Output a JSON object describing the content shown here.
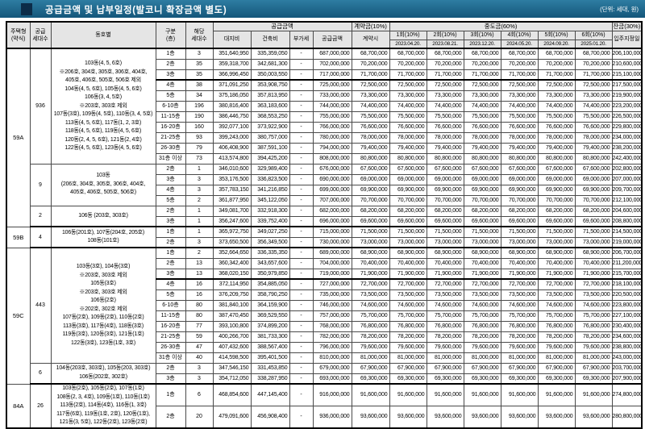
{
  "title": "공급금액 및 납부일정(발코니 확장금액 별도)",
  "unit_note": "(단위: 세대, 원)",
  "colors": {
    "band_teal": "#1e6b8e",
    "accent_navy": "#0c2c48",
    "header_gray": "#e5e5e5"
  },
  "header": {
    "col_type": "주택형\n(약식)",
    "col_units": "공급\n세대수",
    "col_dongho": "동호별",
    "col_floor": "구분\n(층)",
    "col_count": "해당\n세대수",
    "group_supply": "공급금액",
    "col_land": "대지비",
    "col_bldg": "건축비",
    "col_vat": "부가세",
    "col_total": "공급금액",
    "group_contract": "계약금(10%)",
    "col_contract_time": "계약시",
    "group_interim": "중도금(60%)",
    "installments": [
      {
        "label": "1회(10%)",
        "date": "2023.04.20."
      },
      {
        "label": "2회(10%)",
        "date": "2023.08.21."
      },
      {
        "label": "3회(10%)",
        "date": "2023.12.20."
      },
      {
        "label": "4회(10%)",
        "date": "2024.05.20."
      },
      {
        "label": "5회(10%)",
        "date": "2024.09.20."
      },
      {
        "label": "6회(10%)",
        "date": "2025.01.20."
      }
    ],
    "group_balance": "잔금(30%)",
    "col_movein": "입주지정일"
  },
  "groups": [
    {
      "type": "59A",
      "subs": [
        {
          "units": "936",
          "dongho": "103동(4, 5, 6호)\n※206호, 304호, 305호, 306호, 404호,\n405호, 406호, 505호, 506호 제외\n104동(4, 5, 6호), 105동(4, 5, 6호)\n106동(3, 4, 5호)\n※203호, 303호 제외\n107동(3호), 109동(4, 5호), 110동(3, 4, 5호)\n113동(4, 5, 6호), 117동(1, 2, 3호)\n118동(4, 5, 6호), 119동(4, 5, 6호)\n120동(2, 4, 5, 6호), 121동(2, 4호)\n122동(4, 5, 6호), 123동(4, 5, 6호)",
          "rows": [
            {
              "f": "1층",
              "c": "3",
              "land": "351,640,950",
              "bldg": "335,359,050",
              "vat": "-",
              "total": "687,000,000",
              "inst": "68,700,000",
              "bal": "206,100,000"
            },
            {
              "f": "2층",
              "c": "35",
              "land": "359,318,700",
              "bldg": "342,681,300",
              "vat": "-",
              "total": "702,000,000",
              "inst": "70,200,000",
              "bal": "210,600,000"
            },
            {
              "f": "3층",
              "c": "35",
              "land": "366,996,450",
              "bldg": "350,003,550",
              "vat": "-",
              "total": "717,000,000",
              "inst": "71,700,000",
              "bal": "215,100,000",
              "thick": true
            },
            {
              "f": "4층",
              "c": "38",
              "land": "371,091,250",
              "bldg": "353,908,750",
              "vat": "-",
              "total": "725,000,000",
              "inst": "72,500,000",
              "bal": "217,500,000"
            },
            {
              "f": "5층",
              "c": "34",
              "land": "375,186,050",
              "bldg": "357,813,950",
              "vat": "-",
              "total": "733,000,000",
              "inst": "73,300,000",
              "bal": "219,900,000"
            },
            {
              "f": "6-10층",
              "c": "196",
              "land": "380,816,400",
              "bldg": "363,183,600",
              "vat": "-",
              "total": "744,000,000",
              "inst": "74,400,000",
              "bal": "223,200,000"
            },
            {
              "f": "11-15층",
              "c": "190",
              "land": "386,446,750",
              "bldg": "368,553,250",
              "vat": "-",
              "total": "755,000,000",
              "inst": "75,500,000",
              "bal": "226,500,000"
            },
            {
              "f": "16-20층",
              "c": "160",
              "land": "392,077,100",
              "bldg": "373,922,900",
              "vat": "-",
              "total": "766,000,000",
              "inst": "76,600,000",
              "bal": "229,800,000"
            },
            {
              "f": "21-25층",
              "c": "93",
              "land": "399,243,000",
              "bldg": "380,757,000",
              "vat": "-",
              "total": "780,000,000",
              "inst": "78,000,000",
              "bal": "234,000,000"
            },
            {
              "f": "26-30층",
              "c": "79",
              "land": "406,408,900",
              "bldg": "387,591,100",
              "vat": "-",
              "total": "794,000,000",
              "inst": "79,400,000",
              "bal": "238,200,000"
            },
            {
              "f": "31층 이상",
              "c": "73",
              "land": "413,574,800",
              "bldg": "394,425,200",
              "vat": "-",
              "total": "808,000,000",
              "inst": "80,800,000",
              "bal": "242,400,000"
            }
          ]
        },
        {
          "units": "9",
          "dongho": "103동\n(206호, 304호, 305호, 306호, 404호,\n405호, 406호, 505호, 506호)",
          "rows": [
            {
              "f": "2층",
              "c": "1",
              "land": "346,010,600",
              "bldg": "329,989,400",
              "vat": "-",
              "total": "676,000,000",
              "inst": "67,600,000",
              "bal": "202,800,000"
            },
            {
              "f": "3층",
              "c": "3",
              "land": "353,176,500",
              "bldg": "336,823,500",
              "vat": "-",
              "total": "690,000,000",
              "inst": "69,000,000",
              "bal": "207,000,000"
            },
            {
              "f": "4층",
              "c": "3",
              "land": "357,783,150",
              "bldg": "341,216,850",
              "vat": "-",
              "total": "699,000,000",
              "inst": "69,900,000",
              "bal": "209,700,000"
            },
            {
              "f": "5층",
              "c": "2",
              "land": "361,877,950",
              "bldg": "345,122,050",
              "vat": "-",
              "total": "707,000,000",
              "inst": "70,700,000",
              "bal": "212,100,000"
            }
          ]
        },
        {
          "units": "2",
          "dongho": "106동 (203호, 303호)",
          "rows": [
            {
              "f": "2층",
              "c": "1",
              "land": "349,081,700",
              "bldg": "332,918,300",
              "vat": "-",
              "total": "682,000,000",
              "inst": "68,200,000",
              "bal": "204,600,000"
            },
            {
              "f": "3층",
              "c": "1",
              "land": "356,247,600",
              "bldg": "339,752,400",
              "vat": "-",
              "total": "696,000,000",
              "inst": "69,600,000",
              "bal": "208,800,000"
            }
          ]
        }
      ]
    },
    {
      "type": "59B",
      "subs": [
        {
          "units": "4",
          "dongho": "106동(201호), 107동(204호, 205호)\n108동(101호)",
          "rows": [
            {
              "f": "1층",
              "c": "1",
              "land": "365,972,750",
              "bldg": "349,027,250",
              "vat": "-",
              "total": "715,000,000",
              "inst": "71,500,000",
              "bal": "214,500,000"
            },
            {
              "f": "2층",
              "c": "3",
              "land": "373,650,500",
              "bldg": "356,349,500",
              "vat": "-",
              "total": "730,000,000",
              "inst": "73,000,000",
              "bal": "219,000,000"
            }
          ]
        }
      ]
    },
    {
      "type": "59C",
      "subs": [
        {
          "units": "443",
          "dongho": "103동(3호), 104동(3호)\n※203호, 303호 제외\n105동(3호)\n※203호, 303호 제외\n106동(2호)\n※202호, 302호 제외\n107동(2호), 109동(2호), 110동(2호)\n113동(3호), 117동(4호), 118동(3호)\n119동(3호), 120동(3호), 121동(1호)\n122동(3호), 123동(1호, 3호)",
          "rows": [
            {
              "f": "1층",
              "c": "2",
              "land": "352,664,650",
              "bldg": "336,335,350",
              "vat": "-",
              "total": "689,000,000",
              "inst": "68,900,000",
              "bal": "206,700,000"
            },
            {
              "f": "2층",
              "c": "13",
              "land": "360,342,400",
              "bldg": "343,657,600",
              "vat": "-",
              "total": "704,000,000",
              "inst": "70,400,000",
              "bal": "211,200,000"
            },
            {
              "f": "3층",
              "c": "13",
              "land": "368,020,150",
              "bldg": "350,979,850",
              "vat": "-",
              "total": "719,000,000",
              "inst": "71,900,000",
              "bal": "215,700,000",
              "thick": true
            },
            {
              "f": "4층",
              "c": "16",
              "land": "372,114,950",
              "bldg": "354,885,050",
              "vat": "-",
              "total": "727,000,000",
              "inst": "72,700,000",
              "bal": "218,100,000"
            },
            {
              "f": "5층",
              "c": "16",
              "land": "376,209,750",
              "bldg": "358,790,250",
              "vat": "-",
              "total": "735,000,000",
              "inst": "73,500,000",
              "bal": "220,500,000"
            },
            {
              "f": "6-10층",
              "c": "80",
              "land": "381,840,100",
              "bldg": "364,159,900",
              "vat": "-",
              "total": "746,000,000",
              "inst": "74,600,000",
              "bal": "223,800,000"
            },
            {
              "f": "11-15층",
              "c": "80",
              "land": "387,470,450",
              "bldg": "369,529,550",
              "vat": "-",
              "total": "757,000,000",
              "inst": "75,700,000",
              "bal": "227,100,000"
            },
            {
              "f": "16-20층",
              "c": "77",
              "land": "393,100,800",
              "bldg": "374,899,200",
              "vat": "-",
              "total": "768,000,000",
              "inst": "76,800,000",
              "bal": "230,400,000"
            },
            {
              "f": "21-25층",
              "c": "59",
              "land": "400,266,700",
              "bldg": "381,733,300",
              "vat": "-",
              "total": "782,000,000",
              "inst": "78,200,000",
              "bal": "234,600,000"
            },
            {
              "f": "26-30층",
              "c": "47",
              "land": "407,432,600",
              "bldg": "388,567,400",
              "vat": "-",
              "total": "796,000,000",
              "inst": "79,600,000",
              "bal": "238,800,000"
            },
            {
              "f": "31층 이상",
              "c": "40",
              "land": "414,598,500",
              "bldg": "395,401,500",
              "vat": "-",
              "total": "810,000,000",
              "inst": "81,000,000",
              "bal": "243,000,000"
            }
          ]
        },
        {
          "units": "6",
          "dongho": "104동(203호, 303호), 105동(203, 303호)\n106동(202호, 302호)",
          "rows": [
            {
              "f": "2층",
              "c": "3",
              "land": "347,546,150",
              "bldg": "331,453,850",
              "vat": "-",
              "total": "679,000,000",
              "inst": "67,900,000",
              "bal": "203,700,000"
            },
            {
              "f": "3층",
              "c": "3",
              "land": "354,712,050",
              "bldg": "338,287,950",
              "vat": "-",
              "total": "693,000,000",
              "inst": "69,300,000",
              "bal": "207,900,000"
            }
          ]
        }
      ]
    },
    {
      "type": "84A",
      "subs": [
        {
          "units": "26",
          "tall": true,
          "dongho": "103동(2호), 105동(2호), 107동(1호)\n108동(2, 3, 4호), 109동(1호), 110동(1호)\n113동(2호), 114동(4호), 116동(1, 3호)\n117동(6호), 119동(1호, 2호), 120동(1호),\n121동(3, 5호), 122동(2호), 123동(2호)",
          "rows": [
            {
              "f": "1층",
              "c": "6",
              "land": "468,854,600",
              "bldg": "447,145,400",
              "vat": "-",
              "total": "916,000,000",
              "inst": "91,600,000",
              "bal": "274,800,000"
            },
            {
              "f": "2층",
              "c": "20",
              "land": "479,091,600",
              "bldg": "456,908,400",
              "vat": "-",
              "total": "936,000,000",
              "inst": "93,600,000",
              "bal": "280,800,000"
            }
          ]
        }
      ]
    }
  ]
}
